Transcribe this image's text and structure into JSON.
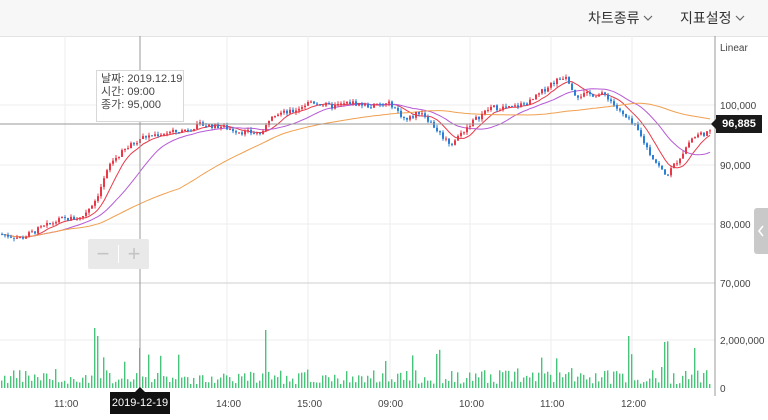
{
  "toolbar": {
    "chart_type_label": "차트종류",
    "indicator_label": "지표설정"
  },
  "scale_label": "Linear",
  "tooltip": {
    "date": "날짜: 2019.12.19",
    "time": "시간: 09:00",
    "close": "종가: 95,000"
  },
  "zoom": {
    "minus": "−",
    "plus": "+"
  },
  "current_price": "96,885",
  "crosshair_date": "2019-12-19",
  "colors": {
    "up": "#e8394a",
    "down": "#2a7fd6",
    "ma_short": "#e8394a",
    "ma_mid": "#b65ad6",
    "ma_long": "#f0a050",
    "volume": "#47c47a"
  },
  "chart_data": {
    "type": "candlestick",
    "price_axis": {
      "ticks": [
        100000,
        90000,
        80000
      ],
      "labels": [
        "100,000",
        "90,000",
        "80,000"
      ],
      "range": [
        70000,
        107000
      ]
    },
    "volume_axis": {
      "ticks": [
        70000,
        2000000,
        0
      ],
      "labels": [
        "70,000",
        "2,000,000",
        "0"
      ]
    },
    "time_axis": {
      "labels": [
        "11:00",
        "14:00",
        "15:00",
        "09:00",
        "10:00",
        "11:00",
        "12:00"
      ]
    },
    "price_path": [
      [
        0,
        78300
      ],
      [
        20,
        77600
      ],
      [
        40,
        79300
      ],
      [
        60,
        80800
      ],
      [
        80,
        81000
      ],
      [
        95,
        84200
      ],
      [
        110,
        90400
      ],
      [
        125,
        92600
      ],
      [
        140,
        94500
      ],
      [
        160,
        95200
      ],
      [
        180,
        95600
      ],
      [
        200,
        96700
      ],
      [
        220,
        96400
      ],
      [
        240,
        95500
      ],
      [
        262,
        95200
      ],
      [
        270,
        98500
      ],
      [
        290,
        98800
      ],
      [
        310,
        100600
      ],
      [
        330,
        99700
      ],
      [
        350,
        100400
      ],
      [
        370,
        99800
      ],
      [
        390,
        100200
      ],
      [
        405,
        97400
      ],
      [
        420,
        99000
      ],
      [
        440,
        95000
      ],
      [
        450,
        93400
      ],
      [
        470,
        97000
      ],
      [
        490,
        99600
      ],
      [
        510,
        99500
      ],
      [
        530,
        100600
      ],
      [
        550,
        103600
      ],
      [
        565,
        105000
      ],
      [
        575,
        101600
      ],
      [
        590,
        101800
      ],
      [
        605,
        101700
      ],
      [
        620,
        98600
      ],
      [
        635,
        96200
      ],
      [
        650,
        91600
      ],
      [
        665,
        88000
      ],
      [
        680,
        91500
      ],
      [
        690,
        94300
      ],
      [
        700,
        95200
      ],
      [
        712,
        95400
      ]
    ]
  }
}
